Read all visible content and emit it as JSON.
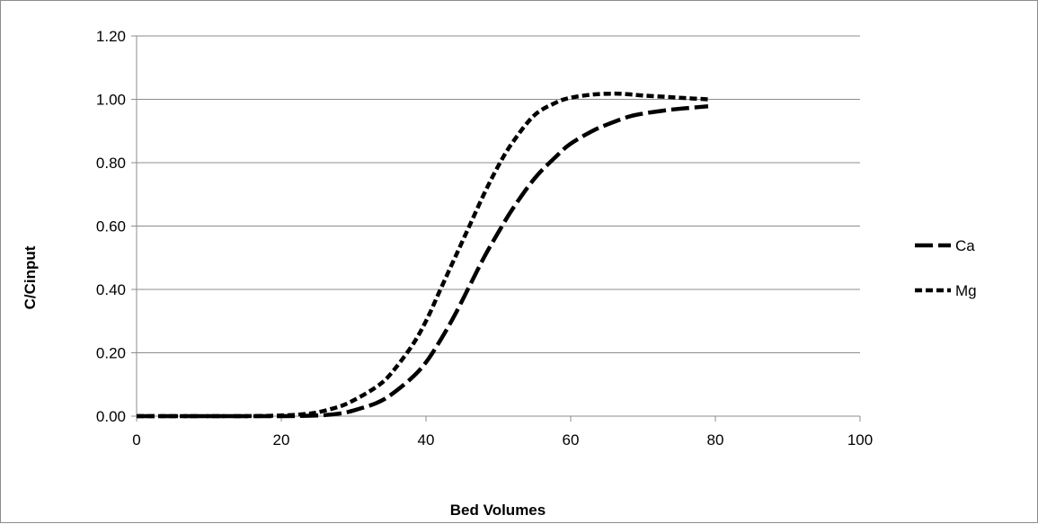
{
  "chart_data": {
    "type": "line",
    "title": "",
    "xlabel": "Bed Volumes",
    "ylabel": "C/Cinput",
    "xlim": [
      0,
      100
    ],
    "ylim": [
      0,
      1.2
    ],
    "x_ticks": [
      "0",
      "20",
      "40",
      "60",
      "80",
      "100"
    ],
    "y_ticks": [
      "0.00",
      "0.20",
      "0.40",
      "0.60",
      "0.80",
      "1.00",
      "1.20"
    ],
    "grid": "horizontal",
    "legend_position": "right",
    "series": [
      {
        "name": "Ca",
        "line_style": "long-dash",
        "color": "#000000",
        "x": [
          0,
          5,
          10,
          15,
          20,
          25,
          28,
          30,
          33,
          35,
          38,
          40,
          42,
          44,
          46,
          48,
          50,
          52,
          55,
          58,
          60,
          63,
          65,
          68,
          70,
          73,
          75,
          79
        ],
        "y": [
          0,
          0,
          0,
          0,
          0,
          0.002,
          0.008,
          0.018,
          0.04,
          0.065,
          0.12,
          0.17,
          0.24,
          0.32,
          0.41,
          0.5,
          0.58,
          0.655,
          0.75,
          0.82,
          0.86,
          0.9,
          0.92,
          0.945,
          0.955,
          0.965,
          0.97,
          0.978
        ]
      },
      {
        "name": "Mg",
        "line_style": "short-dash",
        "color": "#000000",
        "x": [
          0,
          5,
          10,
          15,
          20,
          23,
          25,
          28,
          30,
          33,
          35,
          38,
          40,
          42,
          44,
          46,
          48,
          50,
          52,
          55,
          58,
          60,
          63,
          66,
          68,
          70,
          73,
          75,
          79
        ],
        "y": [
          0,
          0,
          0,
          0,
          0.002,
          0.006,
          0.012,
          0.03,
          0.05,
          0.09,
          0.13,
          0.22,
          0.3,
          0.4,
          0.5,
          0.6,
          0.7,
          0.79,
          0.865,
          0.95,
          0.99,
          1.005,
          1.015,
          1.018,
          1.016,
          1.012,
          1.008,
          1.005,
          1.0
        ]
      }
    ]
  }
}
